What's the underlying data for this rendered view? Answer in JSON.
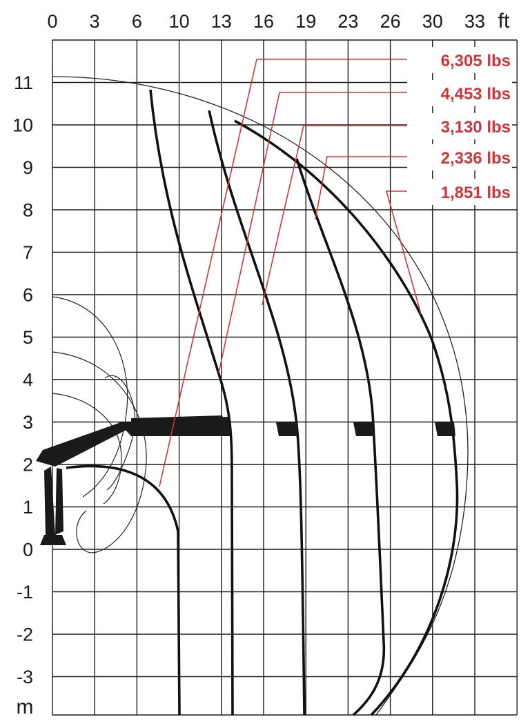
{
  "chart_data": {
    "type": "diagram",
    "x_axis": {
      "unit": "ft",
      "ticks": [
        "0",
        "3",
        "6",
        "10",
        "13",
        "16",
        "19",
        "23",
        "26",
        "30",
        "33"
      ]
    },
    "y_axis": {
      "unit": "m",
      "ticks": [
        "11",
        "10",
        "9",
        "8",
        "7",
        "6",
        "5",
        "4",
        "3",
        "2",
        "1",
        "0",
        "-1",
        "-2",
        "-3"
      ]
    },
    "load_labels": [
      "6,305 lbs",
      "4,453 lbs",
      "3,130 lbs",
      "2,336 lbs",
      "1,851 lbs"
    ],
    "colors": {
      "label": "#d0353b",
      "grid": "#1a1a1a",
      "curve": "#111111"
    }
  }
}
